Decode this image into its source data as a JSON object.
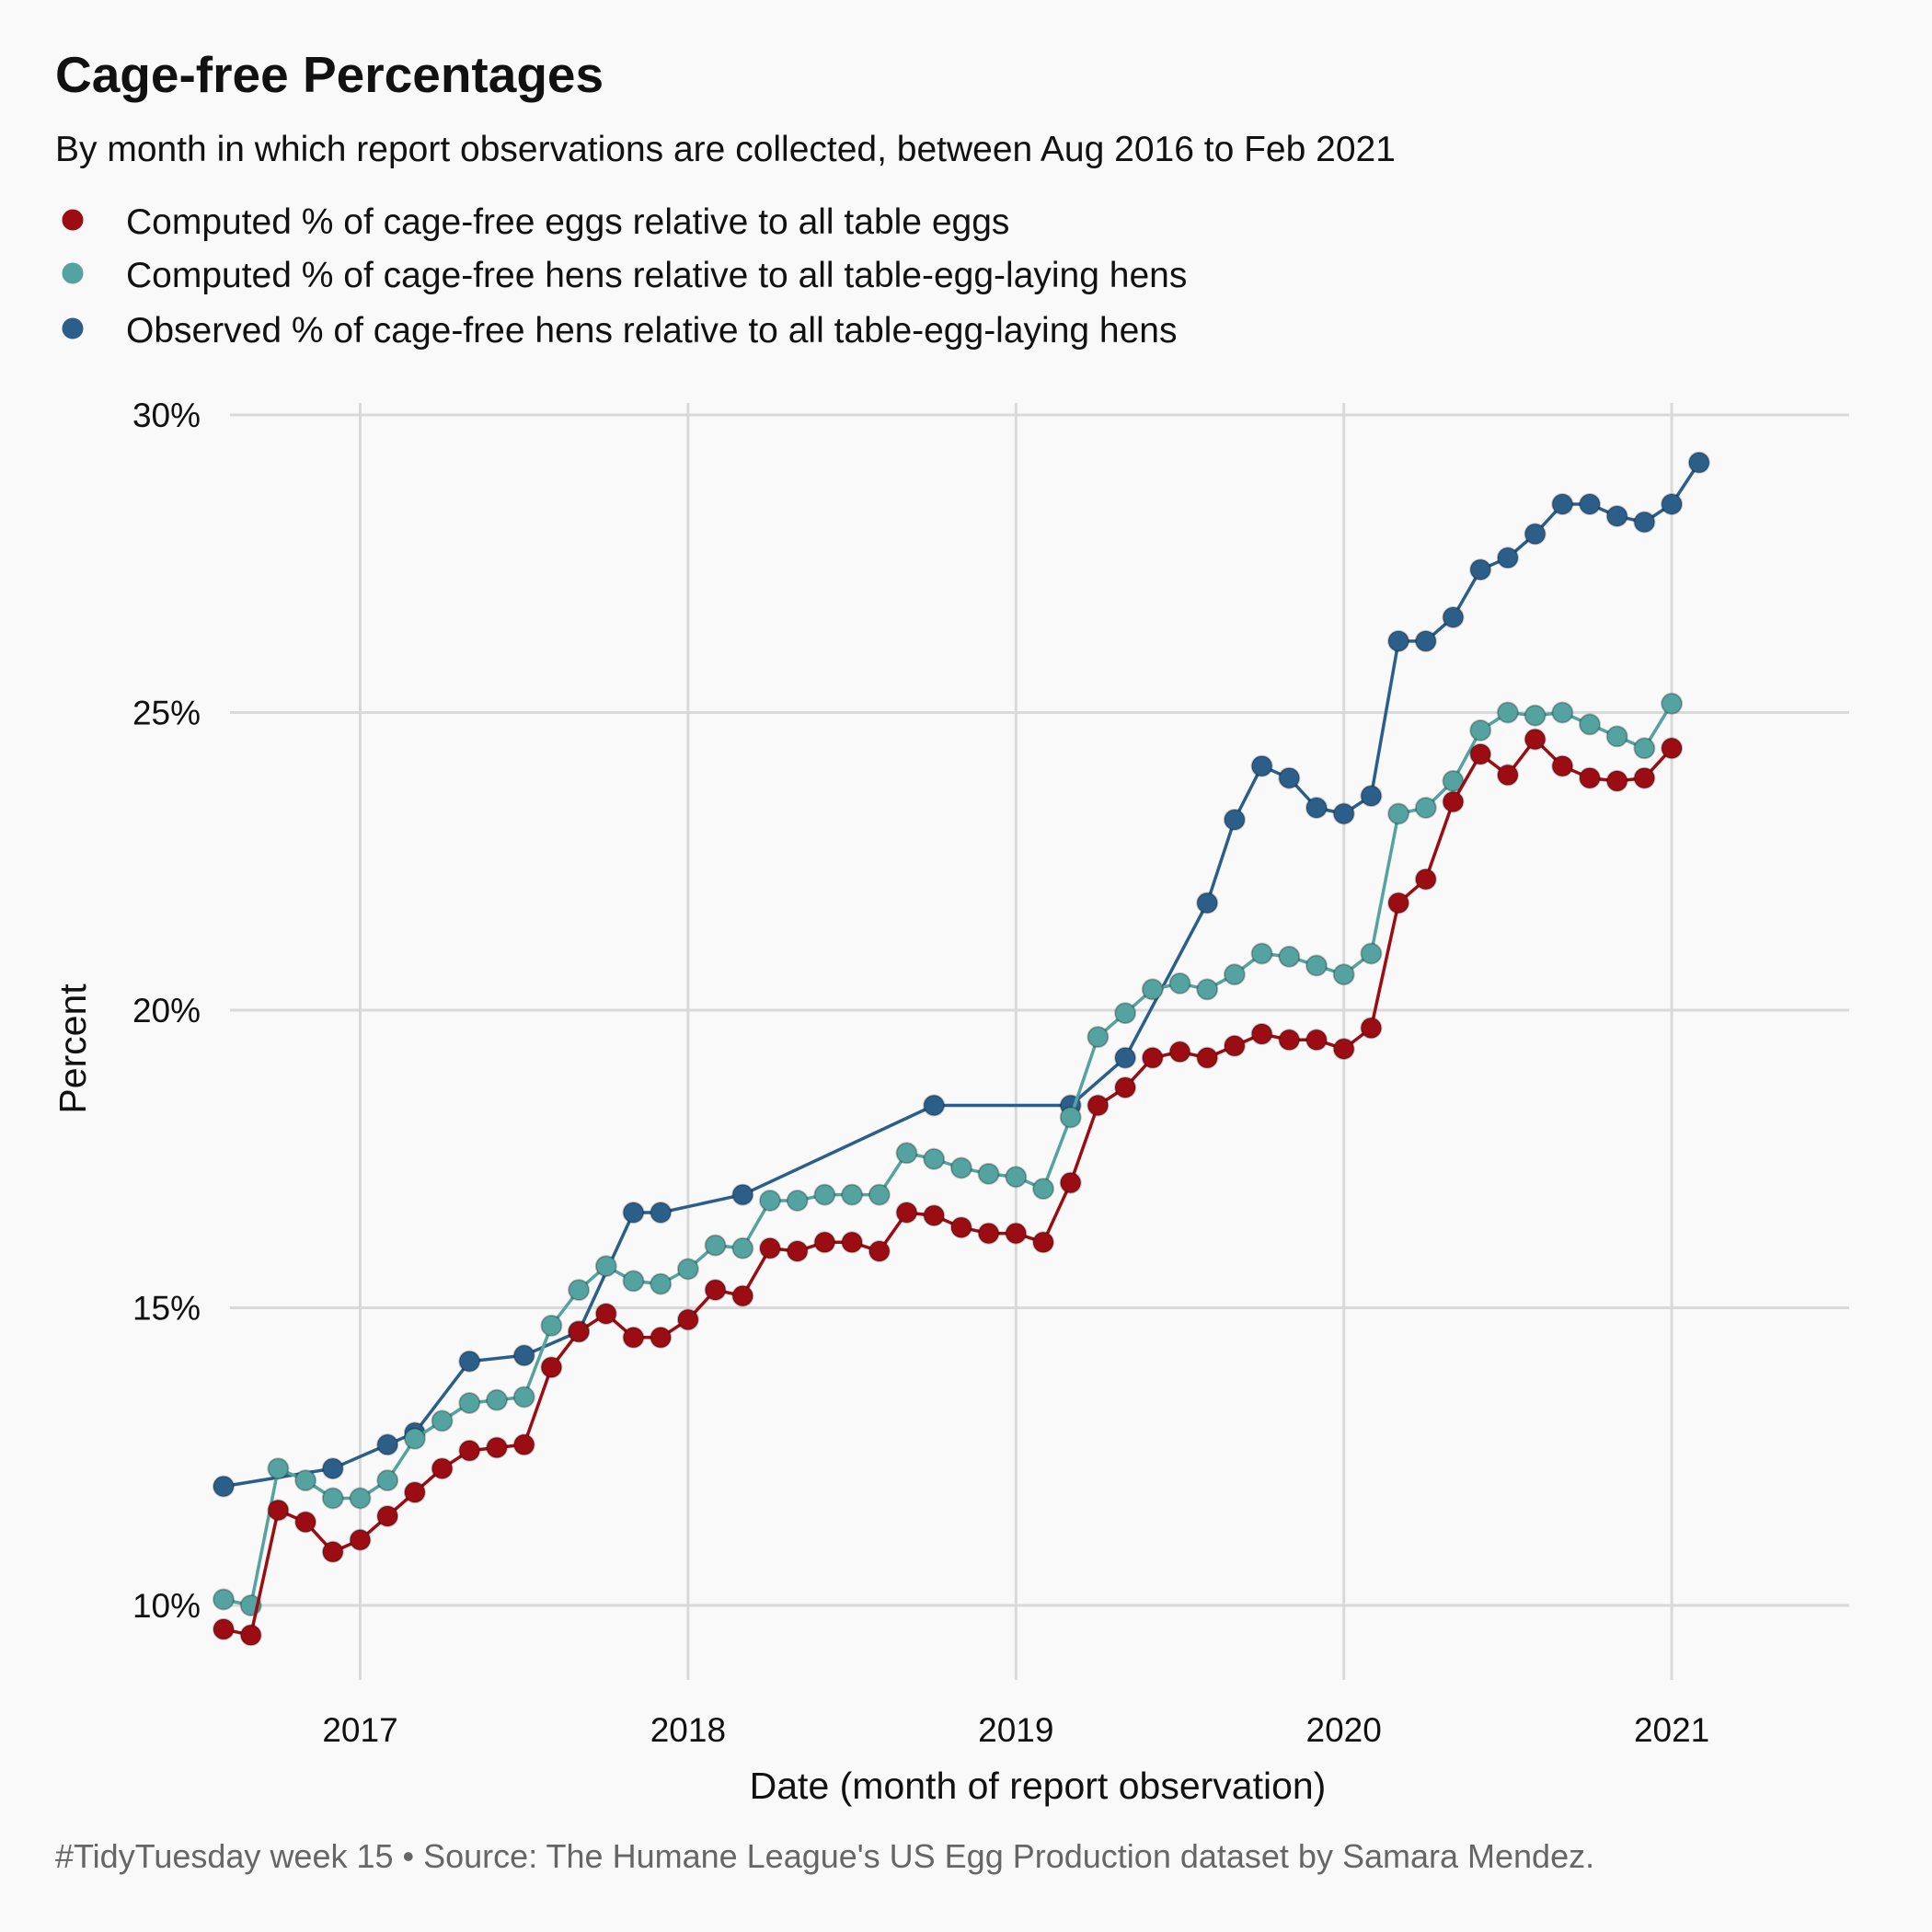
{
  "title": "Cage-free Percentages",
  "subtitle": "By month in which report observations are collected, between Aug 2016 to Feb 2021",
  "caption": "#TidyTuesday week 15  •  Source: The Humane League's US Egg Production dataset by Samara Mendez.",
  "colors": {
    "background": "#f9f9f9",
    "grid": "#d9d9d9",
    "eggs": "#9b0d13",
    "hens_computed": "#54a3a0",
    "hens_observed": "#2b5f8a"
  },
  "chart_data": {
    "type": "line",
    "xlabel": "Date (month of report observation)",
    "ylabel": "Percent",
    "x_ticks": [
      "2017",
      "2018",
      "2019",
      "2020",
      "2021"
    ],
    "y_ticks": [
      "10%",
      "15%",
      "20%",
      "25%",
      "30%"
    ],
    "xlim": [
      "2016-07",
      "2021-05"
    ],
    "ylim": [
      9.3,
      30.2
    ],
    "grid": true,
    "legend_position": "top-left",
    "series": [
      {
        "name": "Computed % of cage-free eggs relative to all table eggs",
        "color": "#9b0d13",
        "points": [
          [
            "2016-08",
            9.6
          ],
          [
            "2016-09",
            9.5
          ],
          [
            "2016-10",
            11.6
          ],
          [
            "2016-11",
            11.4
          ],
          [
            "2016-12",
            10.9
          ],
          [
            "2017-01",
            11.1
          ],
          [
            "2017-02",
            11.5
          ],
          [
            "2017-03",
            11.9
          ],
          [
            "2017-04",
            12.3
          ],
          [
            "2017-05",
            12.6
          ],
          [
            "2017-06",
            12.65
          ],
          [
            "2017-07",
            12.7
          ],
          [
            "2017-08",
            14.0
          ],
          [
            "2017-09",
            14.6
          ],
          [
            "2017-10",
            14.9
          ],
          [
            "2017-11",
            14.5
          ],
          [
            "2017-12",
            14.5
          ],
          [
            "2018-01",
            14.8
          ],
          [
            "2018-02",
            15.3
          ],
          [
            "2018-03",
            15.2
          ],
          [
            "2018-04",
            16.0
          ],
          [
            "2018-05",
            15.95
          ],
          [
            "2018-06",
            16.1
          ],
          [
            "2018-07",
            16.1
          ],
          [
            "2018-08",
            15.95
          ],
          [
            "2018-09",
            16.6
          ],
          [
            "2018-10",
            16.55
          ],
          [
            "2018-11",
            16.35
          ],
          [
            "2018-12",
            16.25
          ],
          [
            "2019-01",
            16.25
          ],
          [
            "2019-02",
            16.1
          ],
          [
            "2019-03",
            17.1
          ],
          [
            "2019-04",
            18.4
          ],
          [
            "2019-05",
            18.7
          ],
          [
            "2019-06",
            19.2
          ],
          [
            "2019-07",
            19.3
          ],
          [
            "2019-08",
            19.2
          ],
          [
            "2019-09",
            19.4
          ],
          [
            "2019-10",
            19.6
          ],
          [
            "2019-11",
            19.5
          ],
          [
            "2019-12",
            19.5
          ],
          [
            "2020-01",
            19.35
          ],
          [
            "2020-02",
            19.7
          ],
          [
            "2020-03",
            21.8
          ],
          [
            "2020-04",
            22.2
          ],
          [
            "2020-05",
            23.5
          ],
          [
            "2020-06",
            24.3
          ],
          [
            "2020-07",
            23.95
          ],
          [
            "2020-08",
            24.55
          ],
          [
            "2020-09",
            24.1
          ],
          [
            "2020-10",
            23.9
          ],
          [
            "2020-11",
            23.85
          ],
          [
            "2020-12",
            23.9
          ],
          [
            "2021-01",
            24.4
          ]
        ]
      },
      {
        "name": "Computed % of cage-free hens relative to all table-egg-laying hens",
        "color": "#54a3a0",
        "points": [
          [
            "2016-08",
            10.1
          ],
          [
            "2016-09",
            10.0
          ],
          [
            "2016-10",
            12.3
          ],
          [
            "2016-11",
            12.1
          ],
          [
            "2016-12",
            11.8
          ],
          [
            "2017-01",
            11.8
          ],
          [
            "2017-02",
            12.1
          ],
          [
            "2017-03",
            12.8
          ],
          [
            "2017-04",
            13.1
          ],
          [
            "2017-05",
            13.4
          ],
          [
            "2017-06",
            13.45
          ],
          [
            "2017-07",
            13.5
          ],
          [
            "2017-08",
            14.7
          ],
          [
            "2017-09",
            15.3
          ],
          [
            "2017-10",
            15.7
          ],
          [
            "2017-11",
            15.45
          ],
          [
            "2017-12",
            15.4
          ],
          [
            "2018-01",
            15.65
          ],
          [
            "2018-02",
            16.05
          ],
          [
            "2018-03",
            16.0
          ],
          [
            "2018-04",
            16.8
          ],
          [
            "2018-05",
            16.8
          ],
          [
            "2018-06",
            16.9
          ],
          [
            "2018-07",
            16.9
          ],
          [
            "2018-08",
            16.9
          ],
          [
            "2018-09",
            17.6
          ],
          [
            "2018-10",
            17.5
          ],
          [
            "2018-11",
            17.35
          ],
          [
            "2018-12",
            17.25
          ],
          [
            "2019-01",
            17.2
          ],
          [
            "2019-02",
            17.0
          ],
          [
            "2019-03",
            18.2
          ],
          [
            "2019-04",
            19.55
          ],
          [
            "2019-05",
            19.95
          ],
          [
            "2019-06",
            20.35
          ],
          [
            "2019-07",
            20.45
          ],
          [
            "2019-08",
            20.35
          ],
          [
            "2019-09",
            20.6
          ],
          [
            "2019-10",
            20.95
          ],
          [
            "2019-11",
            20.9
          ],
          [
            "2019-12",
            20.75
          ],
          [
            "2020-01",
            20.6
          ],
          [
            "2020-02",
            20.95
          ],
          [
            "2020-03",
            23.3
          ],
          [
            "2020-04",
            23.4
          ],
          [
            "2020-05",
            23.85
          ],
          [
            "2020-06",
            24.7
          ],
          [
            "2020-07",
            25.0
          ],
          [
            "2020-08",
            24.95
          ],
          [
            "2020-09",
            25.0
          ],
          [
            "2020-10",
            24.8
          ],
          [
            "2020-11",
            24.6
          ],
          [
            "2020-12",
            24.4
          ],
          [
            "2021-01",
            25.15
          ]
        ]
      },
      {
        "name": "Observed % of cage-free hens relative to all table-egg-laying hens",
        "color": "#2b5f8a",
        "points": [
          [
            "2016-08",
            12.0
          ],
          [
            "2016-12",
            12.3
          ],
          [
            "2017-02",
            12.7
          ],
          [
            "2017-03",
            12.9
          ],
          [
            "2017-05",
            14.1
          ],
          [
            "2017-07",
            14.2
          ],
          [
            "2017-09",
            14.6
          ],
          [
            "2017-11",
            16.6
          ],
          [
            "2017-12",
            16.6
          ],
          [
            "2018-03",
            16.9
          ],
          [
            "2018-10",
            18.4
          ],
          [
            "2019-03",
            18.4
          ],
          [
            "2019-05",
            19.2
          ],
          [
            "2019-08",
            21.8
          ],
          [
            "2019-09",
            23.2
          ],
          [
            "2019-10",
            24.1
          ],
          [
            "2019-11",
            23.9
          ],
          [
            "2019-12",
            23.4
          ],
          [
            "2020-01",
            23.3
          ],
          [
            "2020-02",
            23.6
          ],
          [
            "2020-03",
            26.2
          ],
          [
            "2020-04",
            26.2
          ],
          [
            "2020-05",
            26.6
          ],
          [
            "2020-06",
            27.4
          ],
          [
            "2020-07",
            27.6
          ],
          [
            "2020-08",
            28.0
          ],
          [
            "2020-09",
            28.5
          ],
          [
            "2020-10",
            28.5
          ],
          [
            "2020-11",
            28.3
          ],
          [
            "2020-12",
            28.2
          ],
          [
            "2021-01",
            28.5
          ],
          [
            "2021-02",
            29.2
          ]
        ]
      }
    ]
  }
}
